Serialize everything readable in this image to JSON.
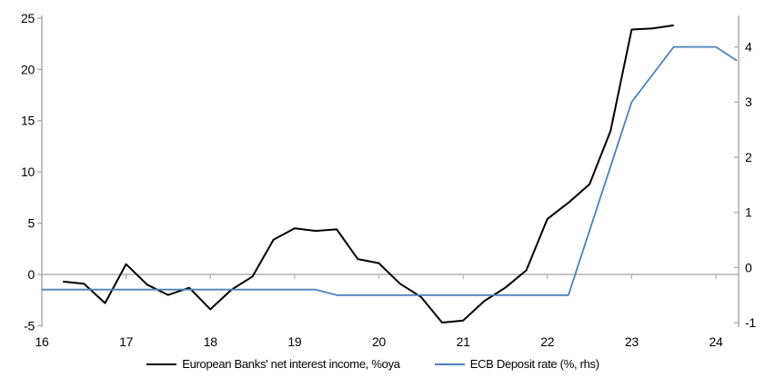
{
  "chart_data": {
    "type": "line",
    "title": "",
    "x_axis": {
      "min": 16,
      "max": 24.27,
      "ticks": [
        16,
        17,
        18,
        19,
        20,
        21,
        22,
        23,
        24
      ],
      "tick_labels": [
        "16",
        "17",
        "18",
        "19",
        "20",
        "21",
        "22",
        "23",
        "24"
      ]
    },
    "left_axis": {
      "min": -5.14,
      "max": 25.27,
      "ticks": [
        25,
        20,
        15,
        10,
        5,
        0,
        -5
      ],
      "tick_labels": [
        "25",
        "20",
        "15",
        "10",
        "5",
        "0",
        "-5"
      ]
    },
    "right_axis": {
      "min": -1.08,
      "max": 4.57,
      "ticks": [
        4,
        3,
        2,
        1,
        0,
        -1
      ],
      "tick_labels": [
        "4",
        "3",
        "2",
        "1",
        "0",
        "-1"
      ]
    },
    "grid": "zero-line-only",
    "legend_position": "bottom",
    "series": [
      {
        "name": "European Banks' net interest income, %oya",
        "axis": "left",
        "color": "#000000",
        "width": 2,
        "x": [
          16.25,
          16.5,
          16.75,
          17.0,
          17.25,
          17.5,
          17.75,
          18.0,
          18.25,
          18.5,
          18.75,
          19.0,
          19.25,
          19.5,
          19.75,
          20.0,
          20.25,
          20.5,
          20.75,
          21.0,
          21.25,
          21.5,
          21.75,
          22.0,
          22.25,
          22.5,
          22.75,
          23.0,
          23.25,
          23.5
        ],
        "values": [
          -0.7,
          -0.9,
          -2.8,
          1.0,
          -1.0,
          -2.0,
          -1.3,
          -3.4,
          -1.5,
          -0.2,
          3.4,
          4.5,
          4.25,
          4.4,
          1.5,
          1.1,
          -0.9,
          -2.2,
          -4.7,
          -4.5,
          -2.6,
          -1.3,
          0.4,
          5.4,
          7.0,
          8.8,
          14.0,
          23.9,
          24.0,
          24.3
        ]
      },
      {
        "name": "ECB Deposit rate (%, rhs)",
        "axis": "right",
        "color": "#4d82bc",
        "width": 1.8,
        "x": [
          16.0,
          16.25,
          16.5,
          16.75,
          17.0,
          17.25,
          17.5,
          17.75,
          18.0,
          18.25,
          18.5,
          18.75,
          19.0,
          19.25,
          19.5,
          19.75,
          20.0,
          20.25,
          20.5,
          20.75,
          21.0,
          21.25,
          21.5,
          21.75,
          22.0,
          22.25,
          22.5,
          22.75,
          23.0,
          23.25,
          23.5,
          23.75,
          24.0,
          24.25
        ],
        "values": [
          -0.4,
          -0.4,
          -0.4,
          -0.4,
          -0.4,
          -0.4,
          -0.4,
          -0.4,
          -0.4,
          -0.4,
          -0.4,
          -0.4,
          -0.4,
          -0.4,
          -0.5,
          -0.5,
          -0.5,
          -0.5,
          -0.5,
          -0.5,
          -0.5,
          -0.5,
          -0.5,
          -0.5,
          -0.5,
          -0.5,
          0.67,
          1.83,
          3.0,
          3.5,
          4.0,
          4.0,
          4.0,
          3.75
        ]
      }
    ],
    "colors": {
      "axis": "#a6a6a6",
      "zero_line": "#b0b0b0",
      "text": "#000000"
    }
  }
}
